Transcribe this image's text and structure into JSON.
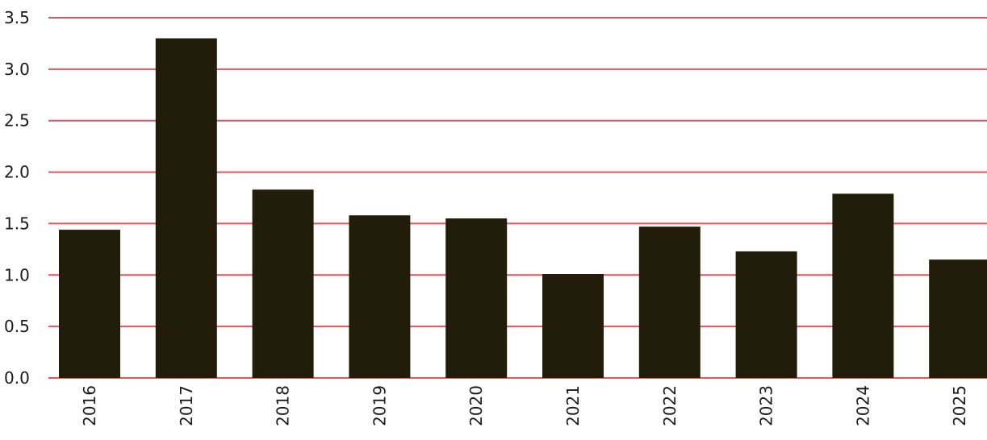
{
  "chart_data": {
    "type": "bar",
    "title": "",
    "xlabel": "",
    "ylabel": "",
    "categories": [
      "2016",
      "2017",
      "2018",
      "2019",
      "2020",
      "2021",
      "2022",
      "2023",
      "2024",
      "2025"
    ],
    "values": [
      1.44,
      3.3,
      1.83,
      1.58,
      1.55,
      1.01,
      1.47,
      1.23,
      1.79,
      1.15
    ],
    "ylim": [
      0,
      3.5
    ],
    "yticks": [
      "0.0",
      "0.5",
      "1.0",
      "1.5",
      "2.0",
      "2.5",
      "3.0",
      "3.5"
    ],
    "grid": true,
    "legend": "none",
    "x_label_orientation": "vertical",
    "colors": {
      "bar": "#221c0b",
      "grid": "#e0575a",
      "text": "#1b1b1b",
      "background": "#ffffff"
    }
  }
}
